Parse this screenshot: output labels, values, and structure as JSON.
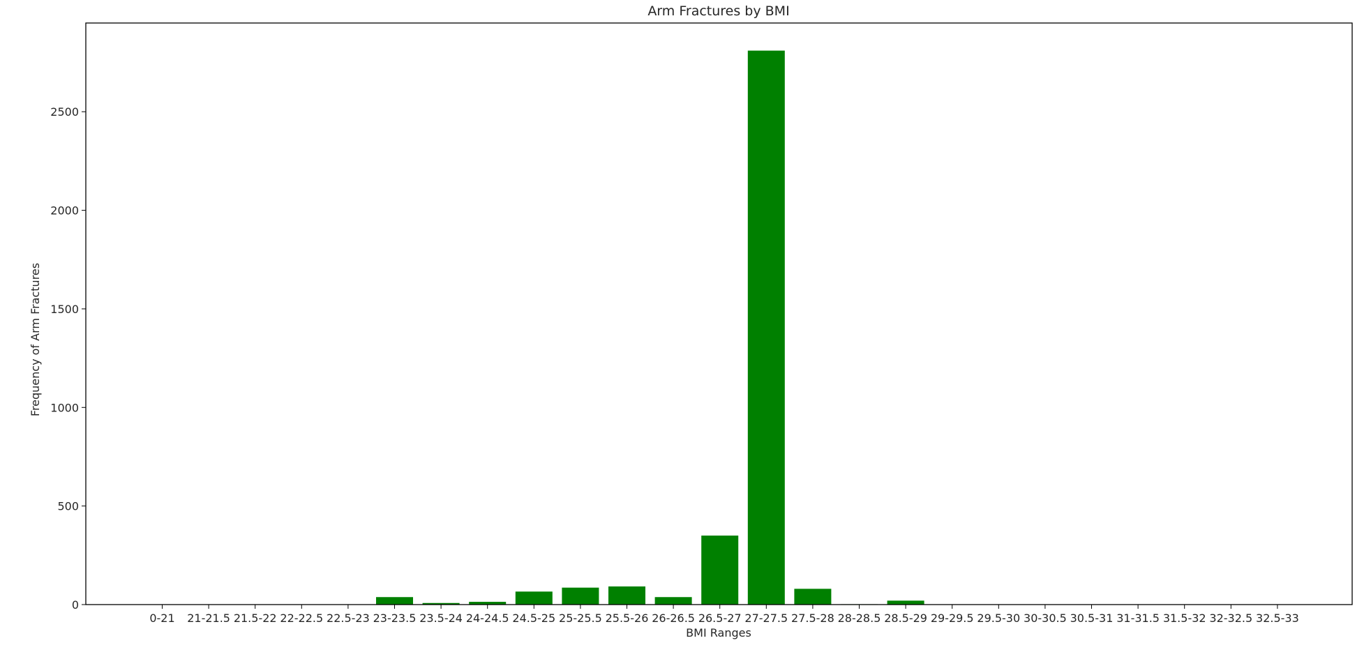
{
  "chart_data": {
    "type": "bar",
    "title": "Arm Fractures by BMI",
    "xlabel": "BMI Ranges",
    "ylabel": "Frequency of Arm Fractures",
    "categories": [
      "0-21",
      "21-21.5",
      "21.5-22",
      "22-22.5",
      "22.5-23",
      "23-23.5",
      "23.5-24",
      "24-24.5",
      "24.5-25",
      "25-25.5",
      "25.5-26",
      "26-26.5",
      "26.5-27",
      "27-27.5",
      "27.5-28",
      "28-28.5",
      "28.5-29",
      "29-29.5",
      "29.5-30",
      "30-30.5",
      "30.5-31",
      "31-31.5",
      "31.5-32",
      "32-32.5",
      "32.5-33"
    ],
    "values": [
      0,
      0,
      0,
      0,
      0,
      38,
      8,
      14,
      66,
      86,
      92,
      38,
      350,
      2810,
      80,
      2,
      20,
      0,
      0,
      0,
      0,
      0,
      0,
      0,
      0
    ],
    "ylim": [
      0,
      2950
    ],
    "yticks": [
      0,
      500,
      1000,
      1500,
      2000,
      2500
    ],
    "bar_color": "#008000",
    "grid": false
  }
}
